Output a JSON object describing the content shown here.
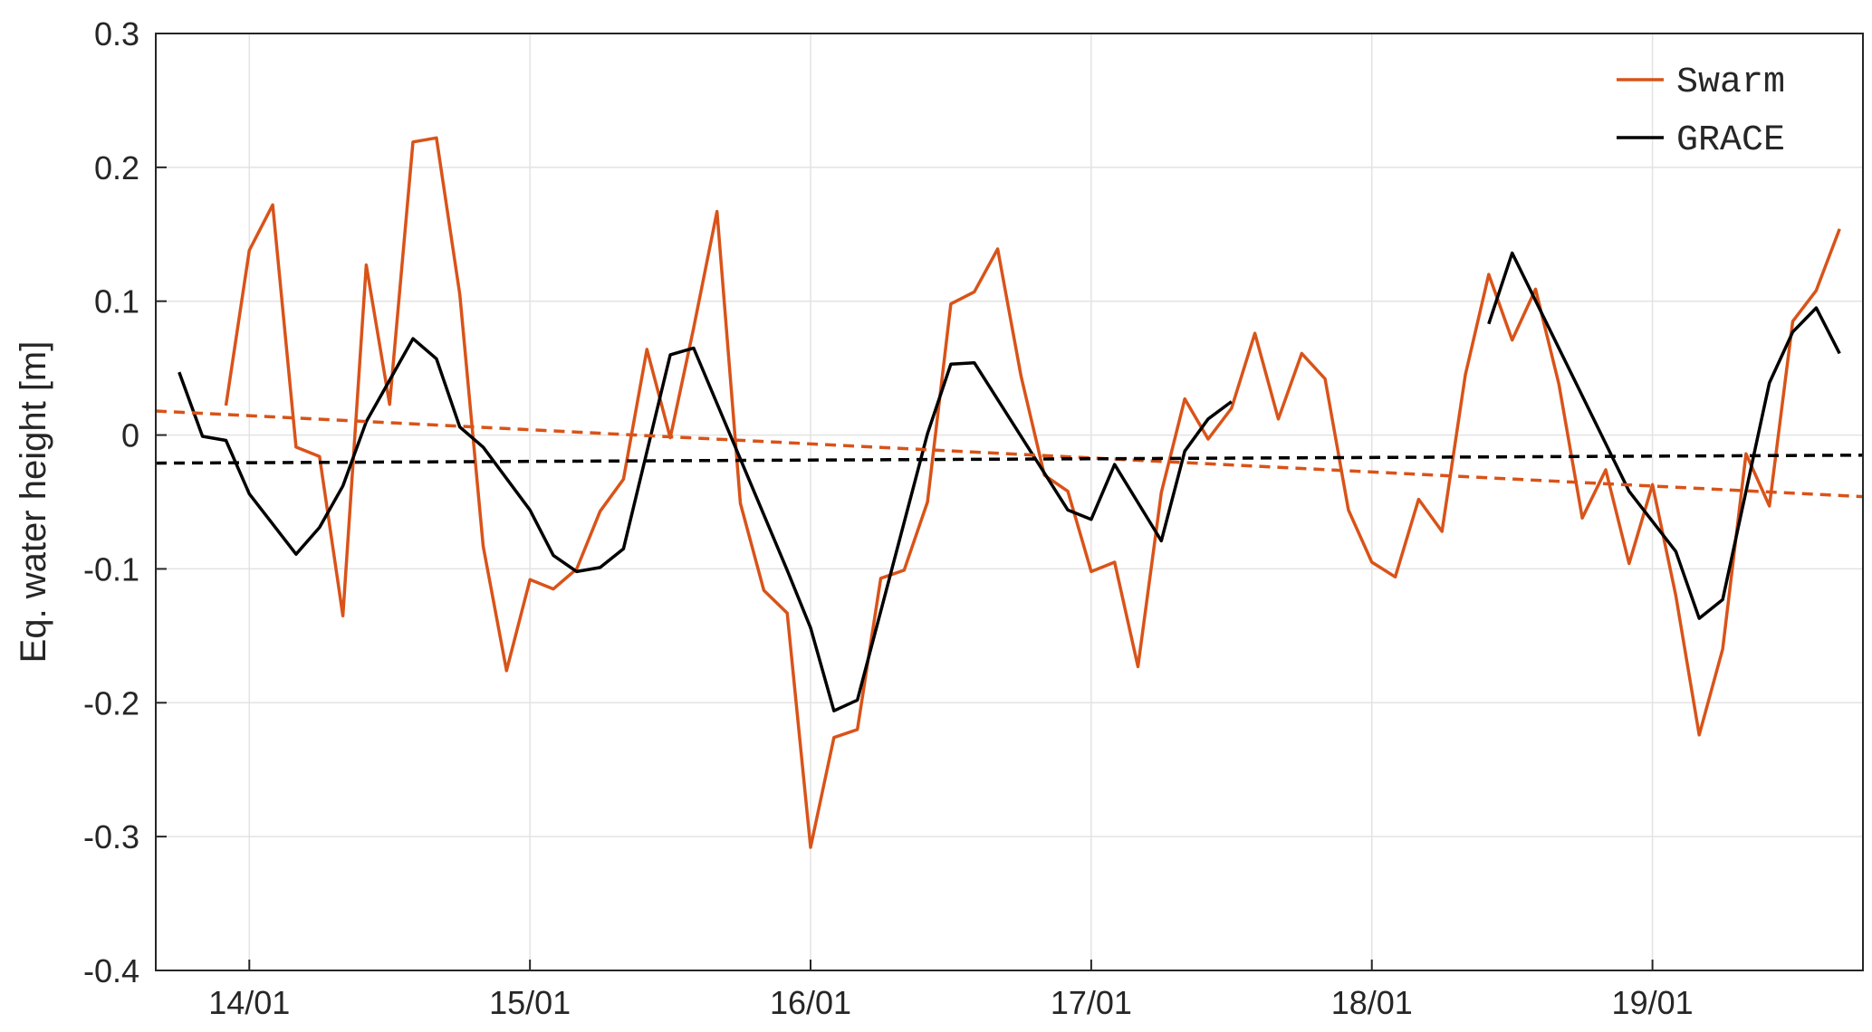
{
  "chart_data": {
    "type": "line",
    "title": "",
    "xlabel": "",
    "ylabel": "Eq. water height [m]",
    "x_unit": "date (YYYY-MM)",
    "xlim": [
      "2013-09",
      "2019-10"
    ],
    "ylim": [
      -0.4,
      0.3
    ],
    "x_ticks": [
      {
        "x": "2014-01",
        "label": "14/01"
      },
      {
        "x": "2015-01",
        "label": "15/01"
      },
      {
        "x": "2016-01",
        "label": "16/01"
      },
      {
        "x": "2017-01",
        "label": "17/01"
      },
      {
        "x": "2018-01",
        "label": "18/01"
      },
      {
        "x": "2019-01",
        "label": "19/01"
      }
    ],
    "y_ticks": [
      {
        "y": 0.3,
        "label": "0.3"
      },
      {
        "y": 0.2,
        "label": "0.2"
      },
      {
        "y": 0.1,
        "label": "0.1"
      },
      {
        "y": 0,
        "label": "0"
      },
      {
        "y": -0.1,
        "label": "-0.1"
      },
      {
        "y": -0.2,
        "label": "-0.2"
      },
      {
        "y": -0.3,
        "label": "-0.3"
      },
      {
        "y": -0.4,
        "label": "-0.4"
      }
    ],
    "grid": true,
    "legend_position": "top-right",
    "series": [
      {
        "name": "Swarm",
        "color": "#d95319",
        "style": "solid",
        "points": [
          [
            "2013-12",
            0.022
          ],
          [
            "2014-01",
            0.138
          ],
          [
            "2014-02",
            0.172
          ],
          [
            "2014-03",
            -0.009
          ],
          [
            "2014-04",
            -0.016
          ],
          [
            "2014-05",
            -0.135
          ],
          [
            "2014-06",
            0.127
          ],
          [
            "2014-07",
            0.023
          ],
          [
            "2014-08",
            0.219
          ],
          [
            "2014-09",
            0.222
          ],
          [
            "2014-10",
            0.105
          ],
          [
            "2014-11",
            -0.083
          ],
          [
            "2014-12",
            -0.176
          ],
          [
            "2015-01",
            -0.108
          ],
          [
            "2015-02",
            -0.115
          ],
          [
            "2015-03",
            -0.1
          ],
          [
            "2015-04",
            -0.057
          ],
          [
            "2015-05",
            -0.033
          ],
          [
            "2015-06",
            0.064
          ],
          [
            "2015-07",
            -0.002
          ],
          [
            "2015-08",
            0.08
          ],
          [
            "2015-09",
            0.167
          ],
          [
            "2015-10",
            -0.051
          ],
          [
            "2015-11",
            -0.116
          ],
          [
            "2015-12",
            -0.133
          ],
          [
            "2016-01",
            -0.308
          ],
          [
            "2016-02",
            -0.226
          ],
          [
            "2016-03",
            -0.22
          ],
          [
            "2016-04",
            -0.107
          ],
          [
            "2016-05",
            -0.101
          ],
          [
            "2016-06",
            -0.05
          ],
          [
            "2016-07",
            0.098
          ],
          [
            "2016-08",
            0.107
          ],
          [
            "2016-09",
            0.139
          ],
          [
            "2016-10",
            0.044
          ],
          [
            "2016-11",
            -0.03
          ],
          [
            "2016-12",
            -0.042
          ],
          [
            "2017-01",
            -0.102
          ],
          [
            "2017-02",
            -0.095
          ],
          [
            "2017-03",
            -0.173
          ],
          [
            "2017-04",
            -0.043
          ],
          [
            "2017-05",
            0.027
          ],
          [
            "2017-06",
            -0.003
          ],
          [
            "2017-07",
            0.02
          ],
          [
            "2017-08",
            0.076
          ],
          [
            "2017-09",
            0.012
          ],
          [
            "2017-10",
            0.061
          ],
          [
            "2017-11",
            0.042
          ],
          [
            "2017-12",
            -0.056
          ],
          [
            "2018-01",
            -0.095
          ],
          [
            "2018-02",
            -0.106
          ],
          [
            "2018-03",
            -0.048
          ],
          [
            "2018-04",
            -0.072
          ],
          [
            "2018-05",
            0.045
          ],
          [
            "2018-06",
            0.12
          ],
          [
            "2018-07",
            0.071
          ],
          [
            "2018-08",
            0.109
          ],
          [
            "2018-09",
            0.038
          ],
          [
            "2018-10",
            -0.062
          ],
          [
            "2018-11",
            -0.026
          ],
          [
            "2018-12",
            -0.096
          ],
          [
            "2019-01",
            -0.037
          ],
          [
            "2019-02",
            -0.12
          ],
          [
            "2019-03",
            -0.224
          ],
          [
            "2019-04",
            -0.16
          ],
          [
            "2019-05",
            -0.014
          ],
          [
            "2019-06",
            -0.053
          ],
          [
            "2019-07",
            0.085
          ],
          [
            "2019-08",
            0.108
          ],
          [
            "2019-09",
            0.154
          ]
        ]
      },
      {
        "name": "GRACE",
        "color": "#000000",
        "style": "solid",
        "segments": [
          [
            [
              "2013-10",
              0.047
            ],
            [
              "2013-11",
              -0.001
            ],
            [
              "2013-12",
              -0.004
            ],
            [
              "2014-01",
              -0.044
            ],
            [
              "2014-03",
              -0.089
            ],
            [
              "2014-04",
              -0.069
            ],
            [
              "2014-05",
              -0.038
            ],
            [
              "2014-06",
              0.01
            ],
            [
              "2014-07",
              0.041
            ],
            [
              "2014-08",
              0.072
            ],
            [
              "2014-09",
              0.057
            ],
            [
              "2014-10",
              0.006
            ],
            [
              "2014-11",
              -0.009
            ],
            [
              "2015-01",
              -0.056
            ],
            [
              "2015-02",
              -0.09
            ],
            [
              "2015-03",
              -0.102
            ],
            [
              "2015-04",
              -0.099
            ],
            [
              "2015-05",
              -0.085
            ],
            [
              "2015-07",
              0.06
            ],
            [
              "2015-08",
              0.065
            ],
            [
              "2015-12",
              -0.101
            ],
            [
              "2016-01",
              -0.144
            ],
            [
              "2016-02",
              -0.206
            ],
            [
              "2016-03",
              -0.198
            ],
            [
              "2016-06",
              0.001
            ],
            [
              "2016-07",
              0.053
            ],
            [
              "2016-08",
              0.054
            ],
            [
              "2016-12",
              -0.056
            ],
            [
              "2017-01",
              -0.063
            ],
            [
              "2017-02",
              -0.022
            ],
            [
              "2017-04",
              -0.079
            ],
            [
              "2017-05",
              -0.012
            ],
            [
              "2017-06",
              0.012
            ],
            [
              "2017-07",
              0.025
            ]
          ],
          [
            [
              "2018-06",
              0.083
            ],
            [
              "2018-07",
              0.136
            ],
            [
              "2018-12",
              -0.042
            ],
            [
              "2019-02",
              -0.087
            ],
            [
              "2019-03",
              -0.137
            ],
            [
              "2019-04",
              -0.123
            ],
            [
              "2019-06",
              0.039
            ],
            [
              "2019-07",
              0.077
            ],
            [
              "2019-08",
              0.095
            ],
            [
              "2019-09",
              0.061
            ]
          ]
        ]
      },
      {
        "color": "#d95319",
        "style": "dashed",
        "points": [
          [
            "2013-09",
            0.018
          ],
          [
            "2019-10",
            -0.046
          ]
        ]
      },
      {
        "color": "#000000",
        "style": "dashed",
        "points": [
          [
            "2013-09",
            -0.021
          ],
          [
            "2019-10",
            -0.015
          ]
        ]
      }
    ],
    "legend": [
      {
        "label": "Swarm",
        "color": "#d95319"
      },
      {
        "label": "GRACE",
        "color": "#000000"
      }
    ]
  }
}
